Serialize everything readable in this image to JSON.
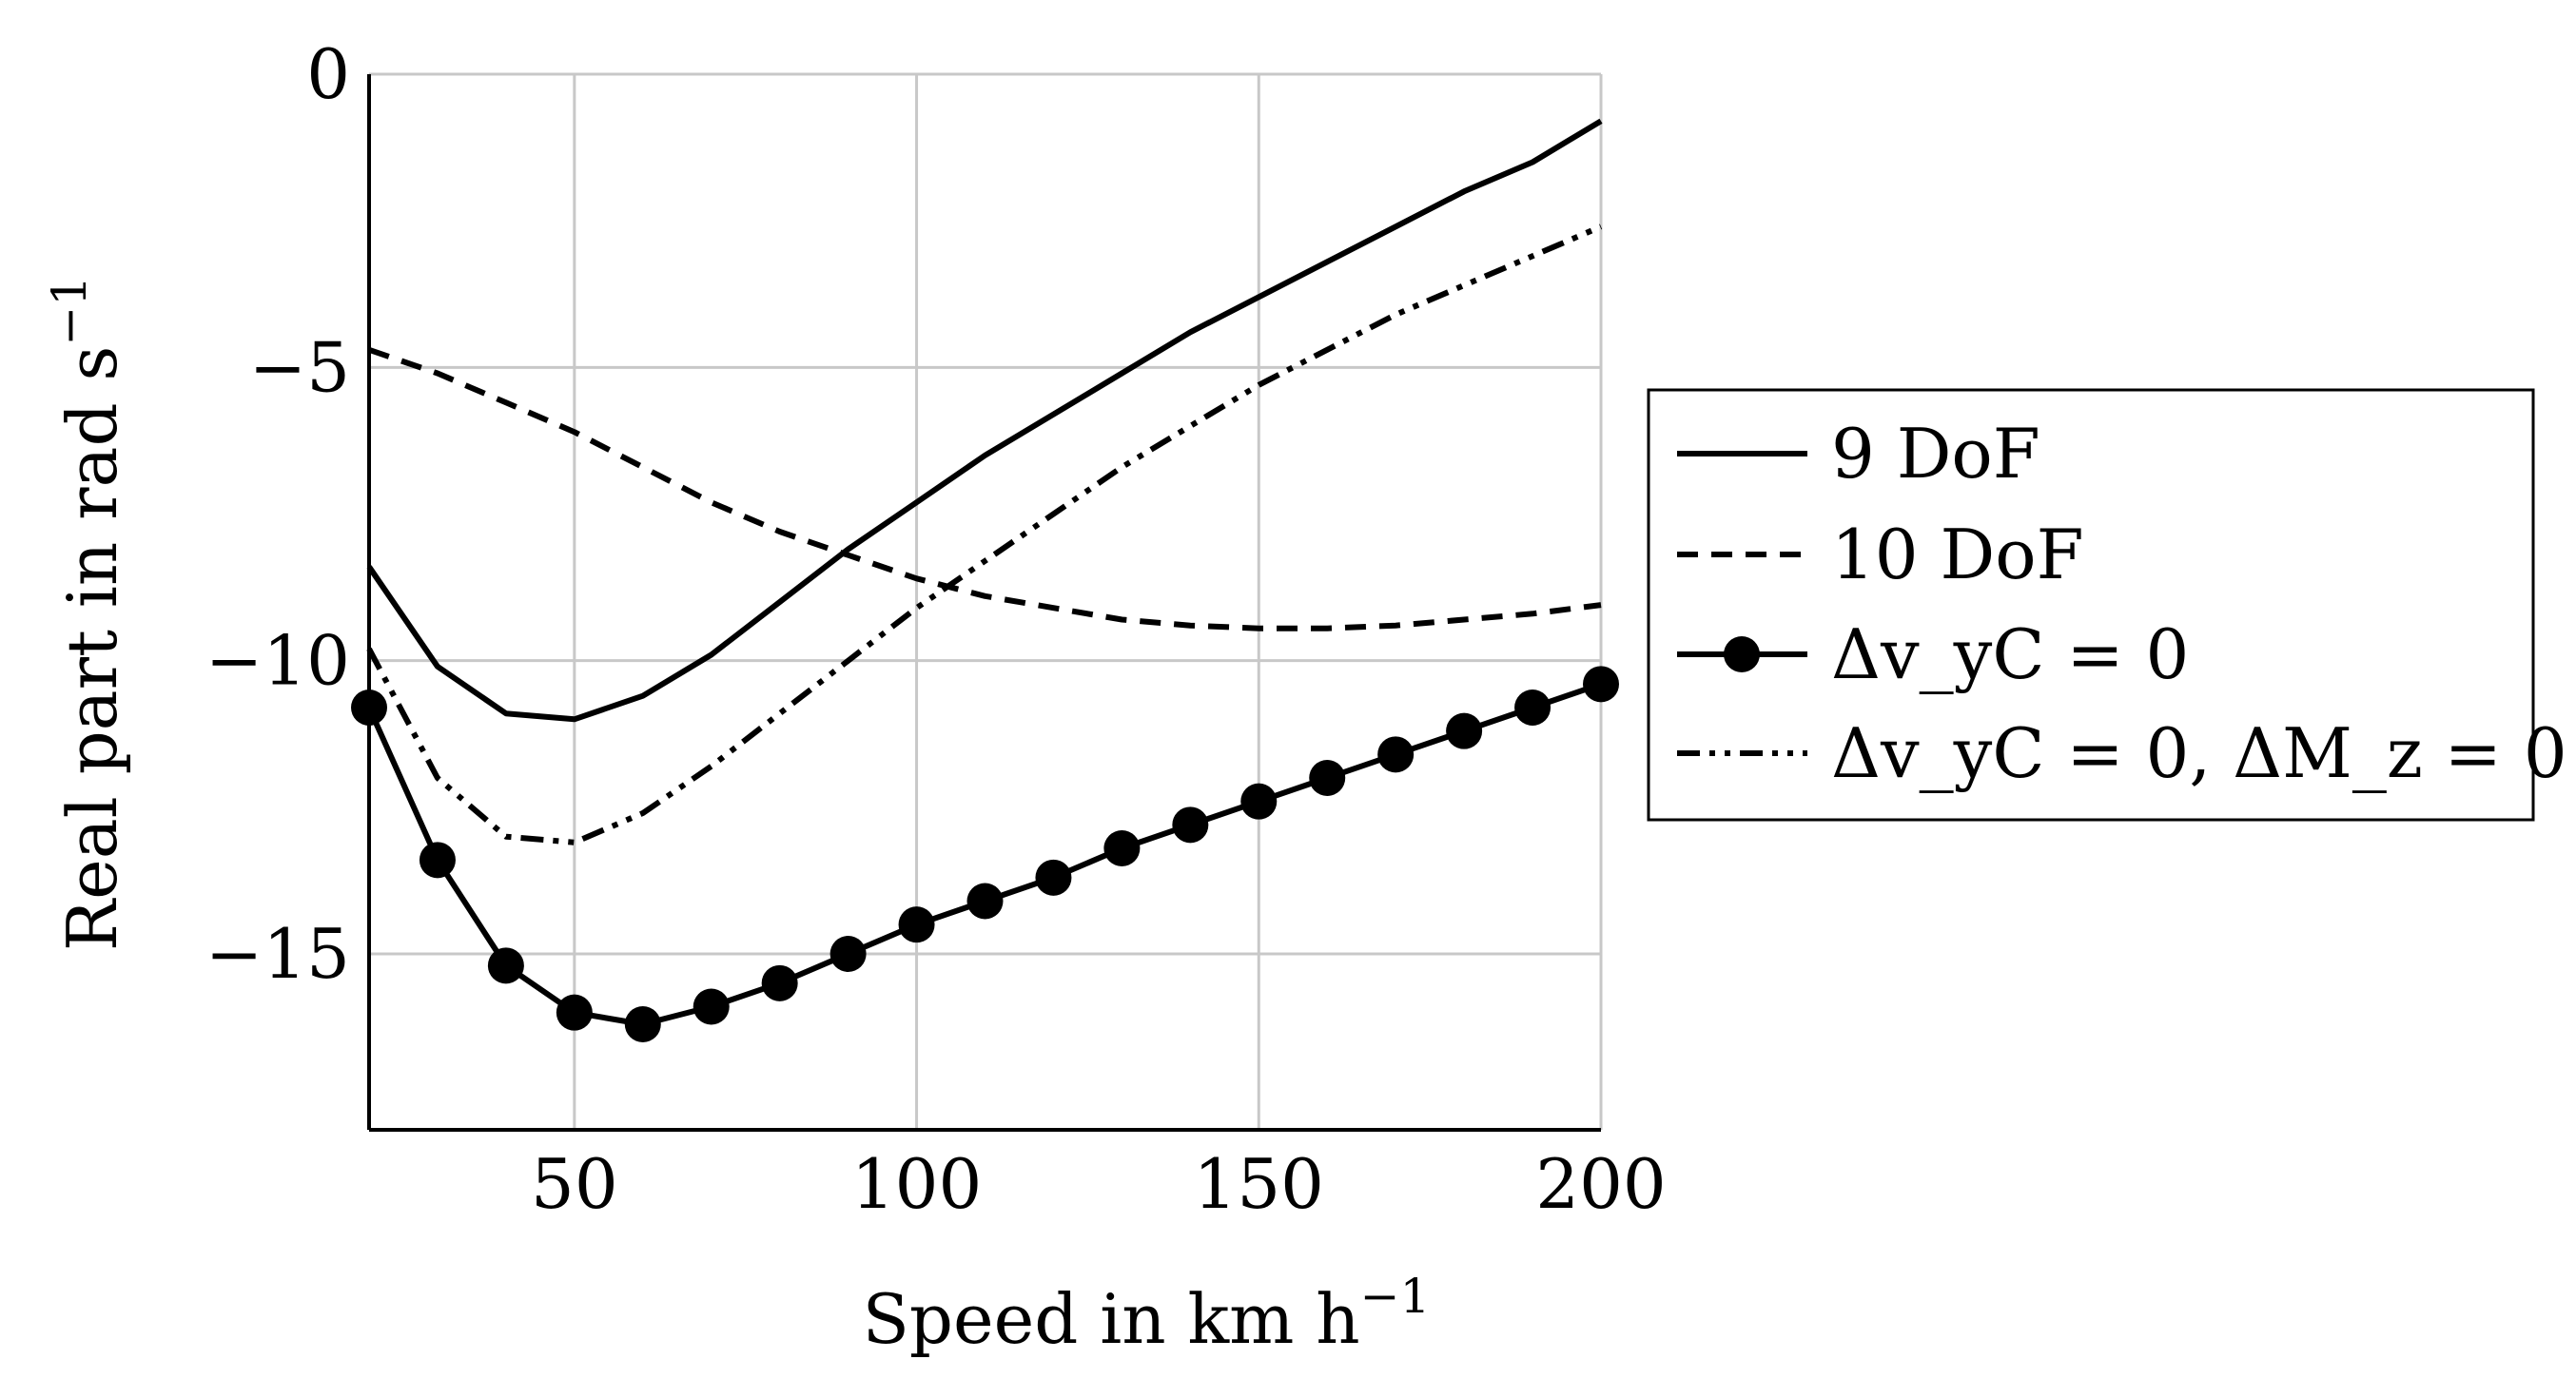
{
  "chart_data": {
    "type": "line",
    "title": "",
    "xlabel": "Speed in km h",
    "xlabel_exponent": "−1",
    "ylabel": "Real part in rad s",
    "ylabel_exponent": "−1",
    "xlim": [
      20,
      200
    ],
    "ylim": [
      -18,
      0
    ],
    "xticks": [
      50,
      100,
      150,
      200
    ],
    "xtick_labels": [
      "50",
      "100",
      "150",
      "200"
    ],
    "yticks": [
      0,
      -5,
      -10,
      -15
    ],
    "ytick_labels": [
      "0",
      "−5",
      "−10",
      "−15"
    ],
    "grid": true,
    "legend_position": "right",
    "series": [
      {
        "name": "9 DoF",
        "style": "solid",
        "x": [
          20,
          30,
          40,
          50,
          60,
          70,
          80,
          90,
          100,
          110,
          120,
          130,
          140,
          150,
          160,
          170,
          180,
          190,
          200
        ],
        "values": [
          -8.4,
          -10.1,
          -10.9,
          -11.0,
          -10.6,
          -9.9,
          -9.0,
          -8.1,
          -7.3,
          -6.5,
          -5.8,
          -5.1,
          -4.4,
          -3.8,
          -3.2,
          -2.6,
          -2.0,
          -1.5,
          -0.8
        ]
      },
      {
        "name": "10 DoF",
        "style": "dashed",
        "x": [
          20,
          30,
          40,
          50,
          60,
          70,
          80,
          90,
          100,
          110,
          120,
          130,
          140,
          150,
          160,
          170,
          180,
          190,
          200
        ],
        "values": [
          -4.7,
          -5.1,
          -5.6,
          -6.1,
          -6.7,
          -7.3,
          -7.8,
          -8.2,
          -8.6,
          -8.9,
          -9.1,
          -9.3,
          -9.4,
          -9.45,
          -9.45,
          -9.4,
          -9.3,
          -9.2,
          -9.05
        ]
      },
      {
        "name": "Δv_yC = 0",
        "style": "solid-markers",
        "x": [
          20,
          30,
          40,
          50,
          60,
          70,
          80,
          90,
          100,
          110,
          120,
          130,
          140,
          150,
          160,
          170,
          180,
          190,
          200
        ],
        "values": [
          -10.8,
          -13.4,
          -15.2,
          -16.0,
          -16.2,
          -15.9,
          -15.5,
          -15.0,
          -14.5,
          -14.1,
          -13.7,
          -13.2,
          -12.8,
          -12.4,
          -12.0,
          -11.6,
          -11.2,
          -10.8,
          -10.4
        ]
      },
      {
        "name": "Δv_yC = 0, ΔM_z = 0",
        "style": "dashdot",
        "x": [
          20,
          30,
          40,
          50,
          60,
          70,
          80,
          90,
          100,
          110,
          120,
          130,
          140,
          150,
          160,
          170,
          180,
          190,
          200
        ],
        "values": [
          -9.8,
          -12.0,
          -13.0,
          -13.1,
          -12.6,
          -11.8,
          -10.9,
          -10.0,
          -9.1,
          -8.3,
          -7.5,
          -6.7,
          -6.0,
          -5.3,
          -4.7,
          -4.1,
          -3.6,
          -3.1,
          -2.6
        ]
      }
    ]
  }
}
